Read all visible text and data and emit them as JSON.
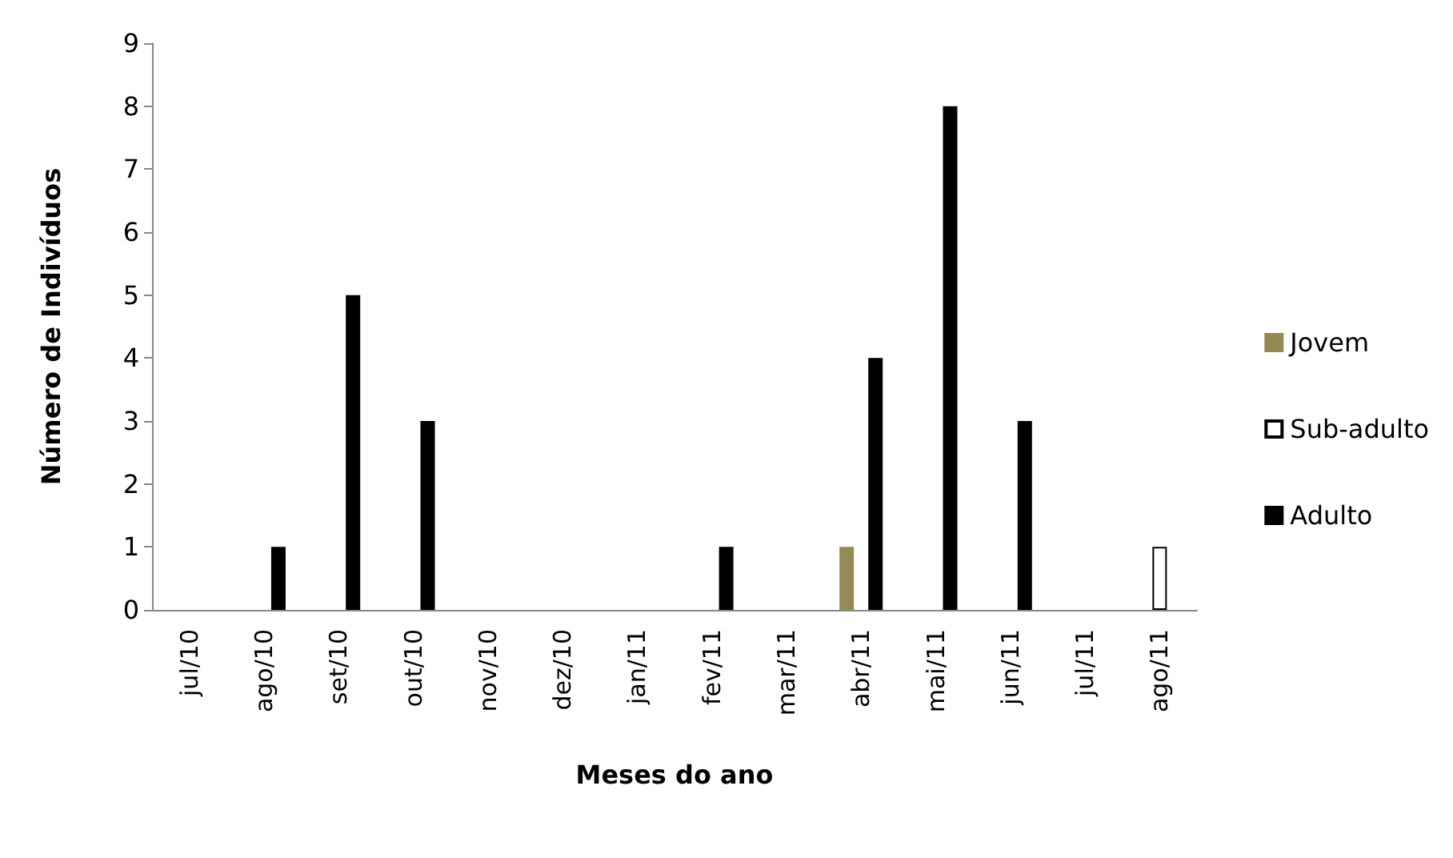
{
  "chart_data": {
    "type": "bar",
    "xlabel": "Meses do ano",
    "ylabel": "Número de Indivíduos",
    "categories": [
      "jul/10",
      "ago/10",
      "set/10",
      "out/10",
      "nov/10",
      "dez/10",
      "jan/11",
      "fev/11",
      "mar/11",
      "abr/11",
      "mai/11",
      "jun/11",
      "jul/11",
      "ago/11"
    ],
    "series": [
      {
        "name": "Jovem",
        "color": "#948a54",
        "values": [
          0,
          0,
          0,
          0,
          0,
          0,
          0,
          0,
          0,
          1,
          0,
          0,
          0,
          0
        ]
      },
      {
        "name": "Sub-adulto",
        "color": "#ffffff",
        "values": [
          0,
          0,
          0,
          0,
          0,
          0,
          0,
          0,
          0,
          0,
          0,
          0,
          0,
          1
        ]
      },
      {
        "name": "Adulto",
        "color": "#000000",
        "values": [
          0,
          1,
          5,
          3,
          0,
          0,
          0,
          1,
          0,
          4,
          8,
          3,
          0,
          0
        ]
      }
    ],
    "ylim": [
      0,
      9
    ],
    "yticks": [
      0,
      1,
      2,
      3,
      4,
      5,
      6,
      7,
      8,
      9
    ],
    "grid": false,
    "legend": "right"
  }
}
